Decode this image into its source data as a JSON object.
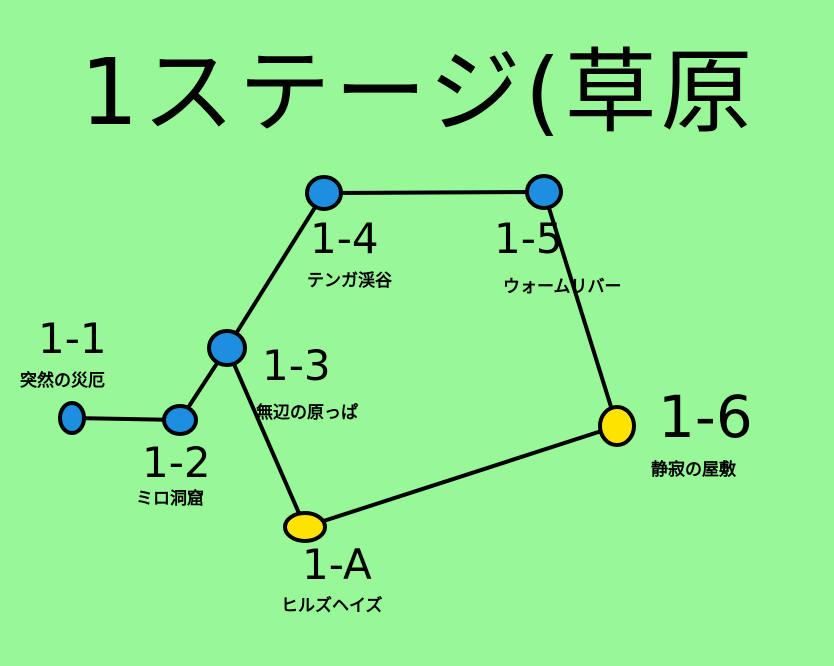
{
  "title": "1ステージ(草原",
  "colors": {
    "background": "#98f898",
    "normal_stage": "#1e8fe0",
    "special_stage": "#ffe300",
    "outline": "#000000"
  },
  "stages": [
    {
      "id": "1-1",
      "code": "1-1",
      "name": "突然の災厄",
      "type": "normal"
    },
    {
      "id": "1-2",
      "code": "1-2",
      "name": "ミロ洞窟",
      "type": "normal"
    },
    {
      "id": "1-3",
      "code": "1-3",
      "name": "無辺の原っぱ",
      "type": "normal"
    },
    {
      "id": "1-4",
      "code": "1-4",
      "name": "テンガ渓谷",
      "type": "normal"
    },
    {
      "id": "1-5",
      "code": "1-5",
      "name": "ウォームリバー",
      "type": "normal"
    },
    {
      "id": "1-6",
      "code": "1-6",
      "name": "静寂の屋敷",
      "type": "special"
    },
    {
      "id": "1-A",
      "code": "1-A",
      "name": "ヒルズヘイズ",
      "type": "special"
    }
  ],
  "connections": [
    [
      "1-1",
      "1-2"
    ],
    [
      "1-2",
      "1-3"
    ],
    [
      "1-3",
      "1-4"
    ],
    [
      "1-4",
      "1-5"
    ],
    [
      "1-5",
      "1-6"
    ],
    [
      "1-6",
      "1-A"
    ],
    [
      "1-A",
      "1-3"
    ]
  ]
}
